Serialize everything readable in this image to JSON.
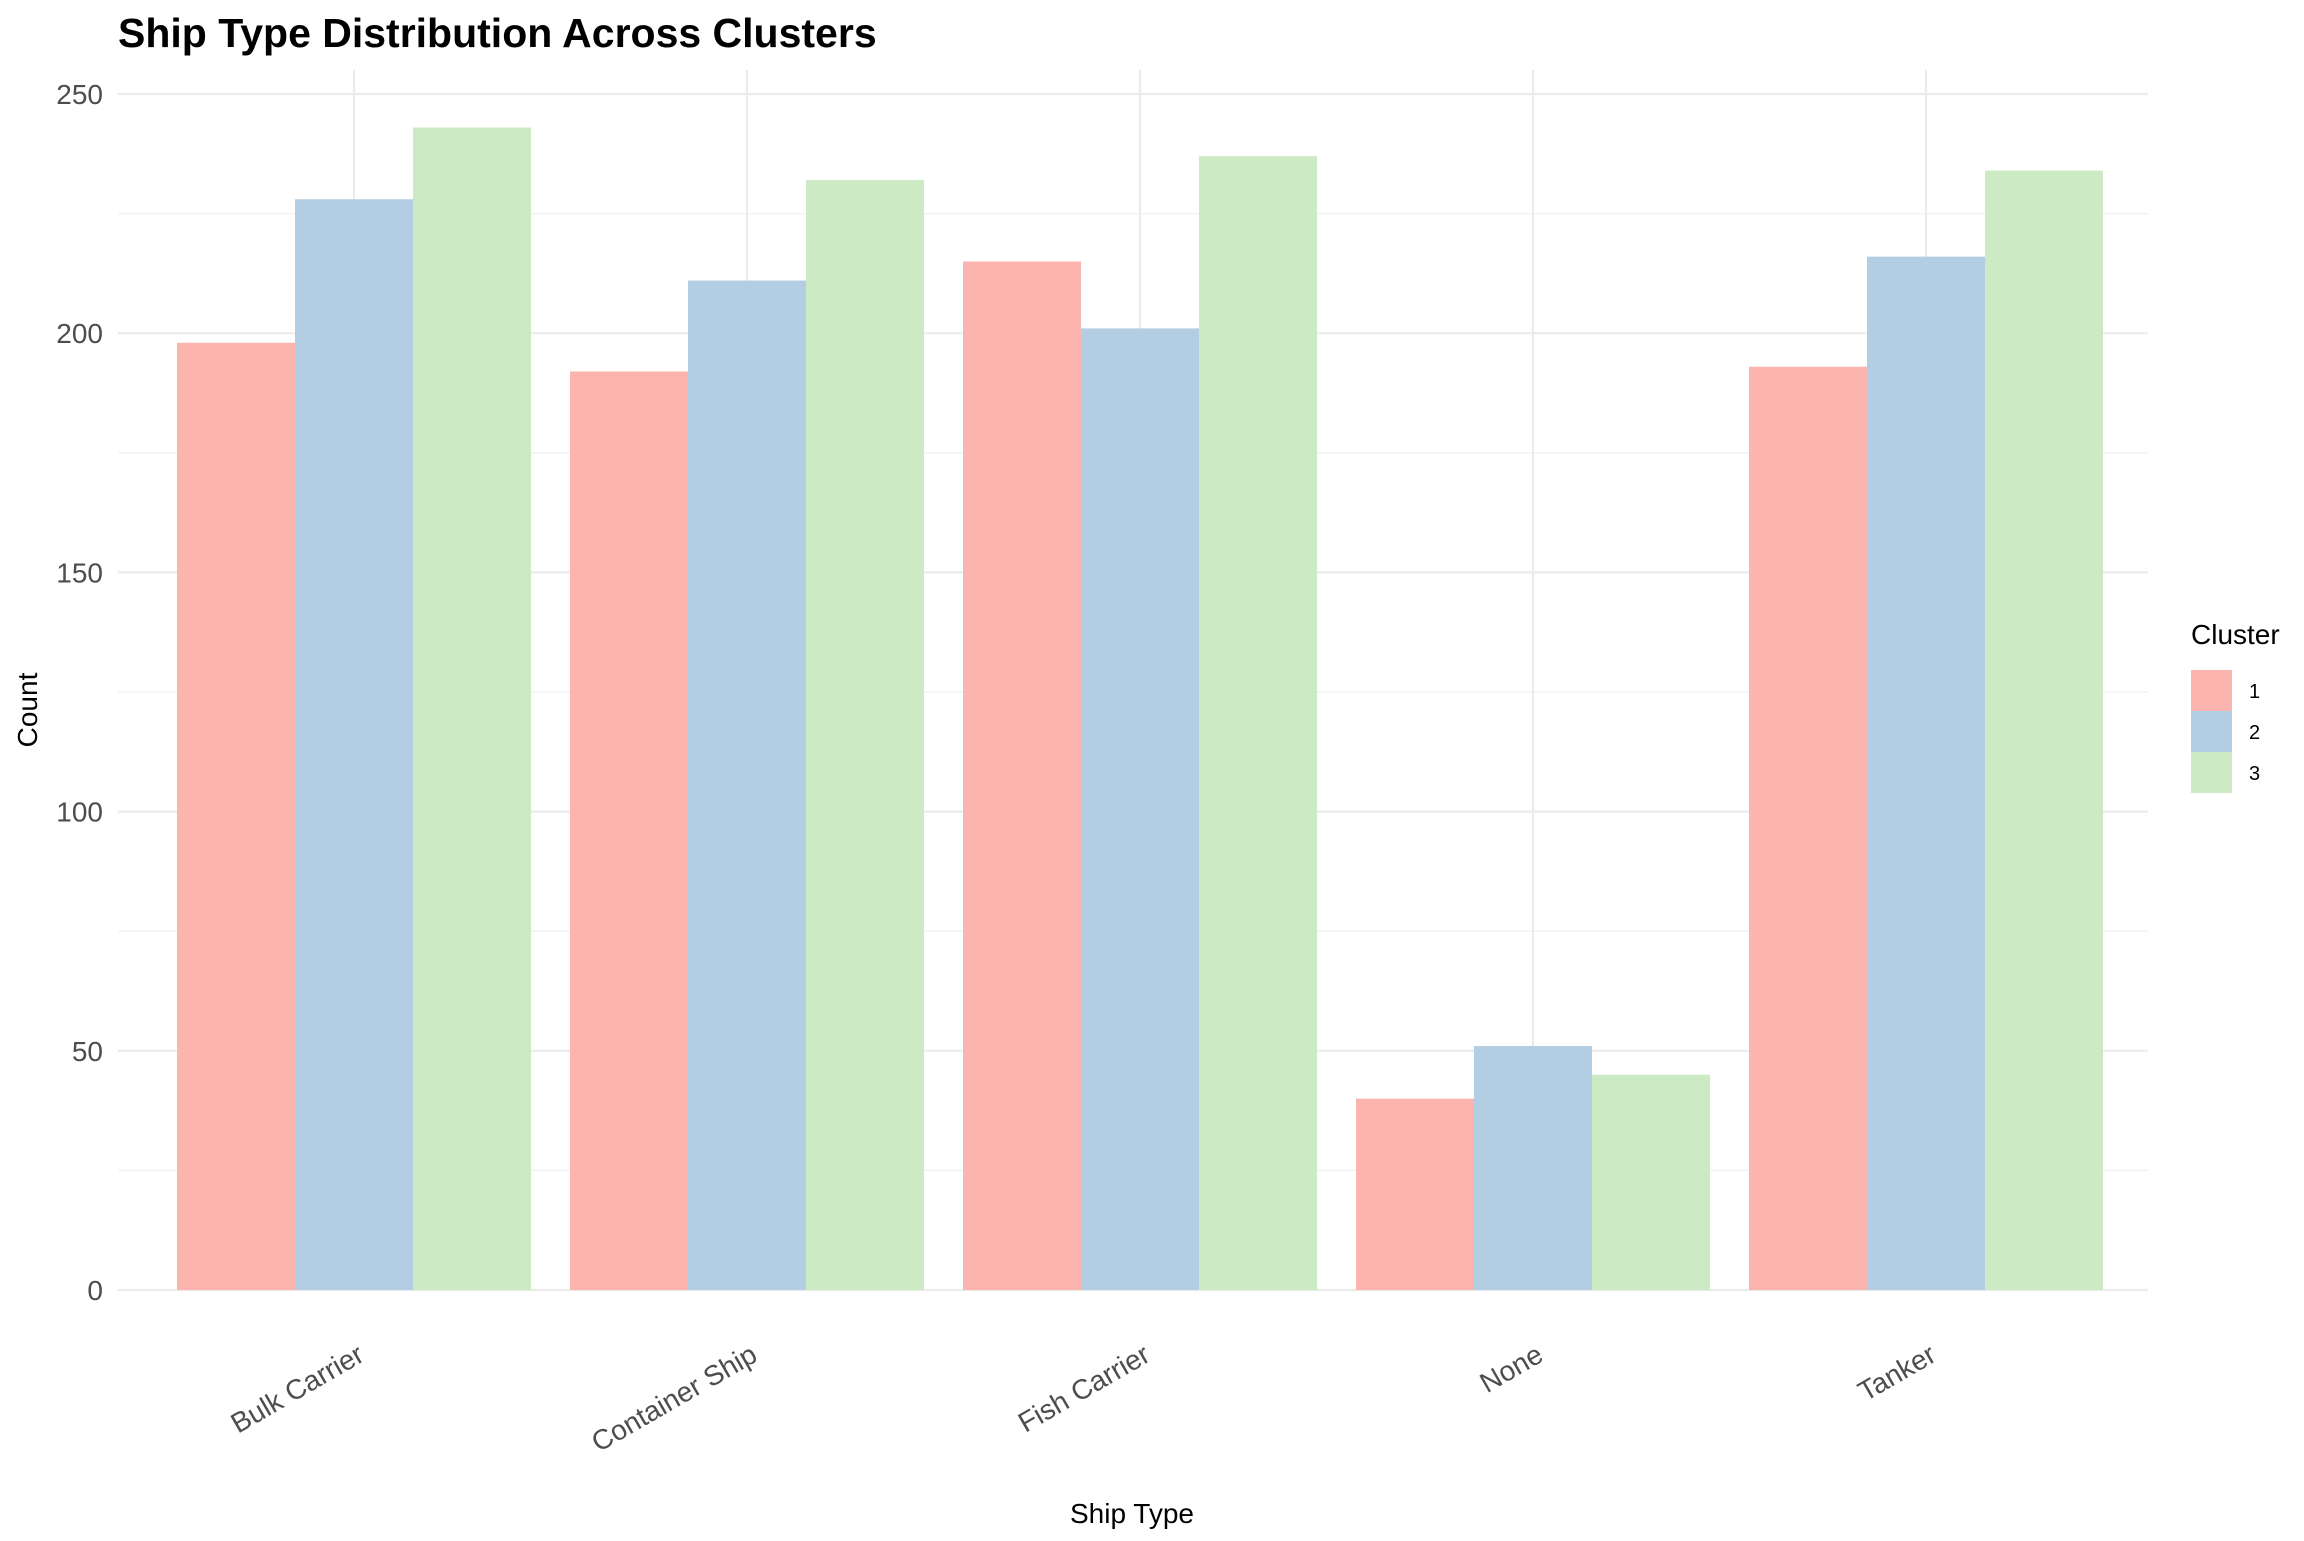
{
  "chart_data": {
    "type": "bar",
    "title": "Ship Type Distribution Across Clusters",
    "xlabel": "Ship Type",
    "ylabel": "Count",
    "ylim": [
      0,
      250
    ],
    "yticks": [
      0,
      50,
      100,
      150,
      200,
      250
    ],
    "grid": true,
    "legend_position": "right",
    "legend_title": "Cluster",
    "categories": [
      "Bulk Carrier",
      "Container Ship",
      "Fish Carrier",
      "None",
      "Tanker"
    ],
    "series": [
      {
        "name": "1",
        "color": "#FBB4AE",
        "values": [
          198,
          192,
          215,
          40,
          193
        ]
      },
      {
        "name": "2",
        "color": "#B3CDE3",
        "values": [
          228,
          211,
          201,
          51,
          216
        ]
      },
      {
        "name": "3",
        "color": "#CCEBC5",
        "values": [
          243,
          232,
          237,
          45,
          234
        ]
      }
    ]
  }
}
